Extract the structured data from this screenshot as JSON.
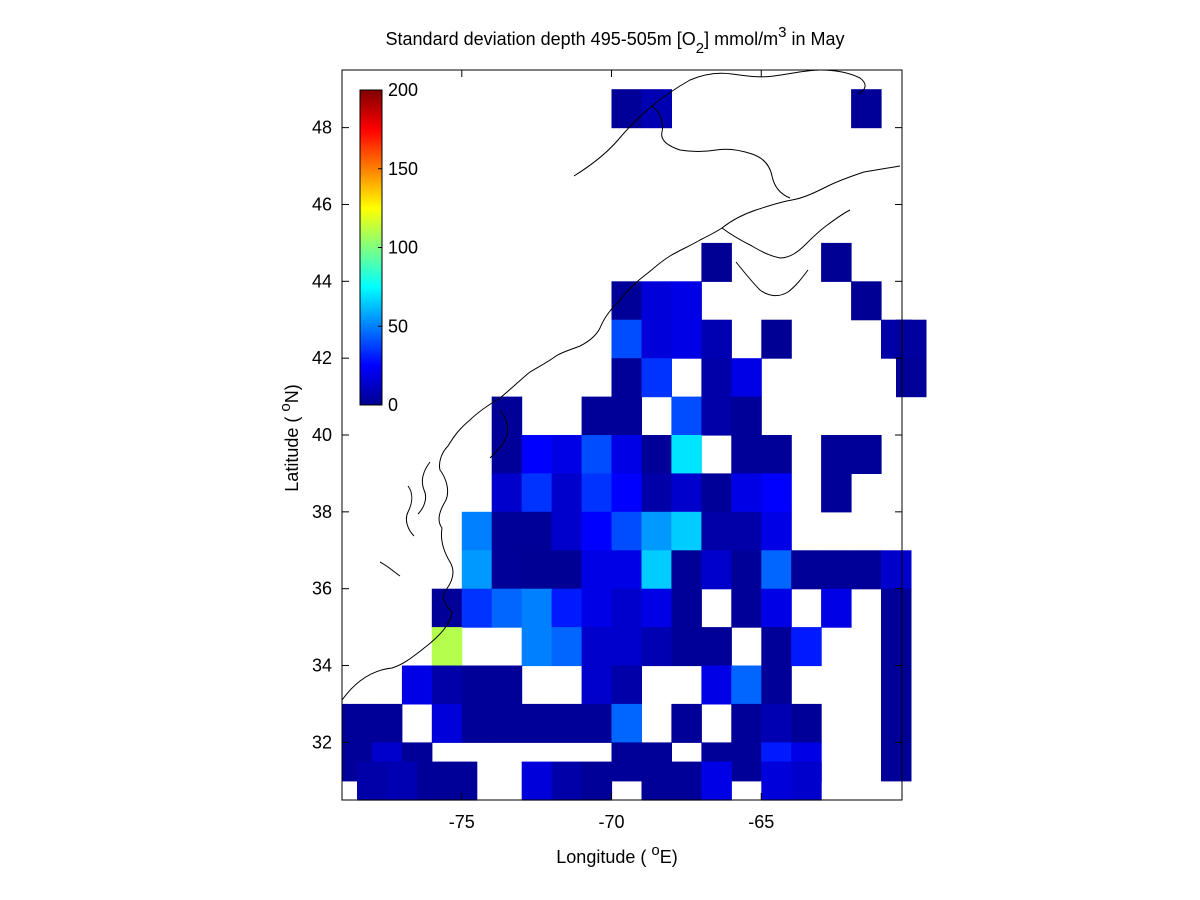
{
  "figure": {
    "title": "Standard deviation depth 495-505m [O",
    "title_sub": "2",
    "title_mid": "] mmol/m",
    "title_sup": "3",
    "title_end": " in May",
    "xlabel_pre": "Longitude ( ",
    "xlabel_sup": "o",
    "xlabel_post": "E)",
    "ylabel_pre": "Latitude ( ",
    "ylabel_sup": "o",
    "ylabel_post": "N)"
  },
  "map_data": {
    "type": "heatmap",
    "colormap": "jet",
    "lon_range": [
      -79,
      -60.3
    ],
    "lat_range": [
      30.5,
      49.5
    ],
    "cell_lon": [
      -79.0,
      -78.5,
      -78.0,
      -77.0,
      -76.0,
      -75.0,
      -74.0,
      -73.0,
      -72.0,
      -71.0,
      -70.0,
      -69.0,
      -68.0,
      -67.0,
      -66.0,
      -65.0,
      -64.0,
      -63.0,
      -62.0,
      -61.0
    ],
    "cell_lat": [
      30.5,
      31.0,
      32.0,
      33.0,
      34.0,
      35.0,
      36.0,
      37.0,
      38.0,
      39.0,
      40.0,
      41.0,
      42.0,
      43.0,
      44.0,
      45.0,
      48.0
    ],
    "xticks": [
      -75,
      -70,
      -65
    ],
    "yticks": [
      32,
      34,
      36,
      38,
      40,
      42,
      44,
      46,
      48
    ],
    "colorbar": {
      "range": [
        0,
        200
      ],
      "ticks": [
        0,
        50,
        100,
        150,
        200
      ]
    },
    "cells": [
      {
        "lon": -70.0,
        "lat": 48.0,
        "v": 5
      },
      {
        "lon": -69.0,
        "lat": 48.0,
        "v": 10
      },
      {
        "lon": -62.0,
        "lat": 48.0,
        "v": 5
      },
      {
        "lon": -67.0,
        "lat": 44.0,
        "v": 4
      },
      {
        "lon": -63.0,
        "lat": 44.0,
        "v": 4
      },
      {
        "lon": -70.0,
        "lat": 43.0,
        "v": 5
      },
      {
        "lon": -69.0,
        "lat": 43.0,
        "v": 18
      },
      {
        "lon": -68.0,
        "lat": 43.0,
        "v": 20
      },
      {
        "lon": -62.0,
        "lat": 43.0,
        "v": 4
      },
      {
        "lon": -70.0,
        "lat": 42.0,
        "v": 40
      },
      {
        "lon": -69.0,
        "lat": 42.0,
        "v": 18
      },
      {
        "lon": -68.0,
        "lat": 42.0,
        "v": 20
      },
      {
        "lon": -67.0,
        "lat": 42.0,
        "v": 10
      },
      {
        "lon": -65.0,
        "lat": 42.0,
        "v": 4
      },
      {
        "lon": -61.0,
        "lat": 42.0,
        "v": 8
      },
      {
        "lon": -60.5,
        "lat": 42.0,
        "v": 6
      },
      {
        "lon": -70.0,
        "lat": 41.0,
        "v": 5
      },
      {
        "lon": -69.0,
        "lat": 41.0,
        "v": 35
      },
      {
        "lon": -67.0,
        "lat": 41.0,
        "v": 8
      },
      {
        "lon": -66.0,
        "lat": 41.0,
        "v": 20
      },
      {
        "lon": -60.5,
        "lat": 41.0,
        "v": 5
      },
      {
        "lon": -74.0,
        "lat": 40.0,
        "v": 5
      },
      {
        "lon": -71.0,
        "lat": 40.0,
        "v": 5
      },
      {
        "lon": -70.0,
        "lat": 40.0,
        "v": 5
      },
      {
        "lon": -68.0,
        "lat": 40.0,
        "v": 40
      },
      {
        "lon": -67.0,
        "lat": 40.0,
        "v": 8
      },
      {
        "lon": -66.0,
        "lat": 40.0,
        "v": 5
      },
      {
        "lon": -74.0,
        "lat": 39.0,
        "v": 5
      },
      {
        "lon": -73.0,
        "lat": 39.0,
        "v": 25
      },
      {
        "lon": -72.0,
        "lat": 39.0,
        "v": 20
      },
      {
        "lon": -71.0,
        "lat": 39.0,
        "v": 40
      },
      {
        "lon": -70.0,
        "lat": 39.0,
        "v": 20
      },
      {
        "lon": -69.0,
        "lat": 39.0,
        "v": 5
      },
      {
        "lon": -68.0,
        "lat": 39.0,
        "v": 70
      },
      {
        "lon": -66.0,
        "lat": 39.0,
        "v": 5
      },
      {
        "lon": -65.0,
        "lat": 39.0,
        "v": 5
      },
      {
        "lon": -63.0,
        "lat": 39.0,
        "v": 5
      },
      {
        "lon": -62.0,
        "lat": 39.0,
        "v": 5
      },
      {
        "lon": -74.0,
        "lat": 38.0,
        "v": 15
      },
      {
        "lon": -73.0,
        "lat": 38.0,
        "v": 35
      },
      {
        "lon": -72.0,
        "lat": 38.0,
        "v": 15
      },
      {
        "lon": -71.0,
        "lat": 38.0,
        "v": 35
      },
      {
        "lon": -70.0,
        "lat": 38.0,
        "v": 25
      },
      {
        "lon": -69.0,
        "lat": 38.0,
        "v": 8
      },
      {
        "lon": -68.0,
        "lat": 38.0,
        "v": 15
      },
      {
        "lon": -67.0,
        "lat": 38.0,
        "v": 5
      },
      {
        "lon": -66.0,
        "lat": 38.0,
        "v": 20
      },
      {
        "lon": -65.0,
        "lat": 38.0,
        "v": 25
      },
      {
        "lon": -63.0,
        "lat": 38.0,
        "v": 5
      },
      {
        "lon": -75.0,
        "lat": 37.0,
        "v": 50
      },
      {
        "lon": -74.0,
        "lat": 37.0,
        "v": 5
      },
      {
        "lon": -73.0,
        "lat": 37.0,
        "v": 5
      },
      {
        "lon": -72.0,
        "lat": 37.0,
        "v": 15
      },
      {
        "lon": -71.0,
        "lat": 37.0,
        "v": 25
      },
      {
        "lon": -70.0,
        "lat": 37.0,
        "v": 40
      },
      {
        "lon": -69.0,
        "lat": 37.0,
        "v": 55
      },
      {
        "lon": -68.0,
        "lat": 37.0,
        "v": 65
      },
      {
        "lon": -67.0,
        "lat": 37.0,
        "v": 8
      },
      {
        "lon": -66.0,
        "lat": 37.0,
        "v": 8
      },
      {
        "lon": -65.0,
        "lat": 37.0,
        "v": 20
      },
      {
        "lon": -75.0,
        "lat": 36.0,
        "v": 55
      },
      {
        "lon": -74.0,
        "lat": 36.0,
        "v": 5
      },
      {
        "lon": -73.0,
        "lat": 36.0,
        "v": 4
      },
      {
        "lon": -72.0,
        "lat": 36.0,
        "v": 4
      },
      {
        "lon": -71.0,
        "lat": 36.0,
        "v": 20
      },
      {
        "lon": -70.0,
        "lat": 36.0,
        "v": 20
      },
      {
        "lon": -69.0,
        "lat": 36.0,
        "v": 65
      },
      {
        "lon": -68.0,
        "lat": 36.0,
        "v": 5
      },
      {
        "lon": -67.0,
        "lat": 36.0,
        "v": 15
      },
      {
        "lon": -66.0,
        "lat": 36.0,
        "v": 5
      },
      {
        "lon": -65.0,
        "lat": 36.0,
        "v": 45
      },
      {
        "lon": -64.0,
        "lat": 36.0,
        "v": 5
      },
      {
        "lon": -63.0,
        "lat": 36.0,
        "v": 5
      },
      {
        "lon": -62.0,
        "lat": 36.0,
        "v": 5
      },
      {
        "lon": -61.0,
        "lat": 36.0,
        "v": 15
      },
      {
        "lon": -76.0,
        "lat": 35.0,
        "v": 5
      },
      {
        "lon": -75.0,
        "lat": 35.0,
        "v": 35
      },
      {
        "lon": -74.0,
        "lat": 35.0,
        "v": 45
      },
      {
        "lon": -73.0,
        "lat": 35.0,
        "v": 50
      },
      {
        "lon": -72.0,
        "lat": 35.0,
        "v": 30
      },
      {
        "lon": -71.0,
        "lat": 35.0,
        "v": 20
      },
      {
        "lon": -70.0,
        "lat": 35.0,
        "v": 15
      },
      {
        "lon": -69.0,
        "lat": 35.0,
        "v": 20
      },
      {
        "lon": -68.0,
        "lat": 35.0,
        "v": 5
      },
      {
        "lon": -66.0,
        "lat": 35.0,
        "v": 5
      },
      {
        "lon": -65.0,
        "lat": 35.0,
        "v": 20
      },
      {
        "lon": -63.0,
        "lat": 35.0,
        "v": 20
      },
      {
        "lon": -61.0,
        "lat": 35.0,
        "v": 5
      },
      {
        "lon": -76.0,
        "lat": 34.0,
        "v": 110
      },
      {
        "lon": -73.0,
        "lat": 34.0,
        "v": 50
      },
      {
        "lon": -72.0,
        "lat": 34.0,
        "v": 45
      },
      {
        "lon": -71.0,
        "lat": 34.0,
        "v": 15
      },
      {
        "lon": -70.0,
        "lat": 34.0,
        "v": 15
      },
      {
        "lon": -69.0,
        "lat": 34.0,
        "v": 10
      },
      {
        "lon": -68.0,
        "lat": 34.0,
        "v": 5
      },
      {
        "lon": -67.0,
        "lat": 34.0,
        "v": 5
      },
      {
        "lon": -65.0,
        "lat": 34.0,
        "v": 5
      },
      {
        "lon": -64.0,
        "lat": 34.0,
        "v": 30
      },
      {
        "lon": -61.0,
        "lat": 34.0,
        "v": 5
      },
      {
        "lon": -77.0,
        "lat": 33.0,
        "v": 20
      },
      {
        "lon": -76.0,
        "lat": 33.0,
        "v": 8
      },
      {
        "lon": -75.0,
        "lat": 33.0,
        "v": 5
      },
      {
        "lon": -74.0,
        "lat": 33.0,
        "v": 5
      },
      {
        "lon": -71.0,
        "lat": 33.0,
        "v": 15
      },
      {
        "lon": -70.0,
        "lat": 33.0,
        "v": 8
      },
      {
        "lon": -67.0,
        "lat": 33.0,
        "v": 20
      },
      {
        "lon": -66.0,
        "lat": 33.0,
        "v": 45
      },
      {
        "lon": -65.0,
        "lat": 33.0,
        "v": 5
      },
      {
        "lon": -61.0,
        "lat": 33.0,
        "v": 5
      },
      {
        "lon": -79.0,
        "lat": 32.0,
        "v": 5
      },
      {
        "lon": -78.0,
        "lat": 32.0,
        "v": 5
      },
      {
        "lon": -76.0,
        "lat": 32.0,
        "v": 18
      },
      {
        "lon": -75.0,
        "lat": 32.0,
        "v": 5
      },
      {
        "lon": -74.0,
        "lat": 32.0,
        "v": 5
      },
      {
        "lon": -73.0,
        "lat": 32.0,
        "v": 5
      },
      {
        "lon": -72.0,
        "lat": 32.0,
        "v": 5
      },
      {
        "lon": -71.0,
        "lat": 32.0,
        "v": 5
      },
      {
        "lon": -70.0,
        "lat": 32.0,
        "v": 45
      },
      {
        "lon": -68.0,
        "lat": 32.0,
        "v": 5
      },
      {
        "lon": -66.0,
        "lat": 32.0,
        "v": 5
      },
      {
        "lon": -65.0,
        "lat": 32.0,
        "v": 10
      },
      {
        "lon": -64.0,
        "lat": 32.0,
        "v": 5
      },
      {
        "lon": -61.0,
        "lat": 32.0,
        "v": 5
      },
      {
        "lon": -79.0,
        "lat": 31.0,
        "v": 5
      },
      {
        "lon": -78.0,
        "lat": 31.0,
        "v": 15
      },
      {
        "lon": -77.0,
        "lat": 31.0,
        "v": 5
      },
      {
        "lon": -70.0,
        "lat": 31.0,
        "v": 5
      },
      {
        "lon": -69.0,
        "lat": 31.0,
        "v": 5
      },
      {
        "lon": -67.0,
        "lat": 31.0,
        "v": 5
      },
      {
        "lon": -66.0,
        "lat": 31.0,
        "v": 5
      },
      {
        "lon": -65.0,
        "lat": 31.0,
        "v": 30
      },
      {
        "lon": -64.0,
        "lat": 31.0,
        "v": 20
      },
      {
        "lon": -61.0,
        "lat": 31.0,
        "v": 5
      },
      {
        "lon": -78.5,
        "lat": 30.5,
        "v": 8
      },
      {
        "lon": -77.5,
        "lat": 30.5,
        "v": 10
      },
      {
        "lon": -76.5,
        "lat": 30.5,
        "v": 5
      },
      {
        "lon": -75.5,
        "lat": 30.5,
        "v": 5
      },
      {
        "lon": -73.0,
        "lat": 30.5,
        "v": 18
      },
      {
        "lon": -72.0,
        "lat": 30.5,
        "v": 8
      },
      {
        "lon": -71.0,
        "lat": 30.5,
        "v": 5
      },
      {
        "lon": -69.0,
        "lat": 30.5,
        "v": 5
      },
      {
        "lon": -68.0,
        "lat": 30.5,
        "v": 5
      },
      {
        "lon": -67.0,
        "lat": 30.5,
        "v": 20
      },
      {
        "lon": -65.0,
        "lat": 30.5,
        "v": 18
      },
      {
        "lon": -64.0,
        "lat": 30.5,
        "v": 15
      }
    ]
  }
}
